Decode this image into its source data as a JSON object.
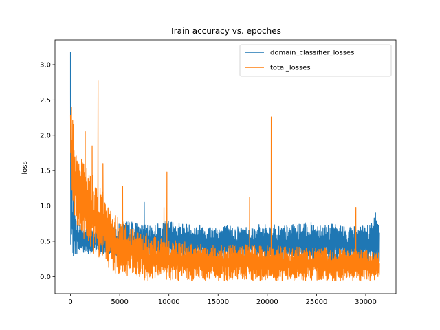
{
  "chart_data": {
    "type": "line",
    "title": "Train accuracy vs. epoches",
    "xlabel": "",
    "ylabel": "loss",
    "xlim": [
      -1575,
      33075
    ],
    "ylim": [
      -0.24,
      3.35
    ],
    "x_ticks": [
      0,
      5000,
      10000,
      15000,
      20000,
      25000,
      30000
    ],
    "x_tick_labels": [
      "0",
      "5000",
      "10000",
      "15000",
      "20000",
      "25000",
      "30000"
    ],
    "y_ticks": [
      0.0,
      0.5,
      1.0,
      1.5,
      2.0,
      2.5,
      3.0
    ],
    "y_tick_labels": [
      "0.0",
      "0.5",
      "1.0",
      "1.5",
      "2.0",
      "2.5",
      "3.0"
    ],
    "grid": false,
    "legend_position": "top-right",
    "series": [
      {
        "name": "domain_classifier_losses",
        "color": "#1f77b4",
        "envelope": {
          "x": [
            0,
            100,
            200,
            400,
            700,
            1000,
            1500,
            2000,
            2500,
            3000,
            3500,
            4000,
            5000,
            6000,
            7000,
            8000,
            10000,
            12000,
            15000,
            18000,
            20000,
            22000,
            25000,
            28000,
            30000,
            31400
          ],
          "upper": [
            3.18,
            2.1,
            1.2,
            0.95,
            0.85,
            0.75,
            0.7,
            0.68,
            0.66,
            0.65,
            0.66,
            0.7,
            0.75,
            0.8,
            0.75,
            0.72,
            0.8,
            0.75,
            0.73,
            0.72,
            0.75,
            0.73,
            0.78,
            0.72,
            0.72,
            0.9
          ],
          "lower": [
            0.05,
            0.15,
            0.25,
            0.3,
            0.32,
            0.33,
            0.33,
            0.32,
            0.32,
            0.32,
            0.3,
            0.3,
            0.3,
            0.28,
            0.28,
            0.28,
            0.25,
            0.25,
            0.22,
            0.22,
            0.2,
            0.2,
            0.18,
            0.18,
            0.18,
            0.05
          ]
        },
        "spikes": [
          {
            "x": 0,
            "y": 3.18
          },
          {
            "x": 150,
            "y": 1.78
          },
          {
            "x": 7500,
            "y": 1.05
          },
          {
            "x": 31000,
            "y": 0.9
          }
        ]
      },
      {
        "name": "total_losses",
        "color": "#ff7f0e",
        "envelope": {
          "x": [
            0,
            200,
            500,
            1000,
            1500,
            2000,
            2500,
            3000,
            3500,
            4000,
            4500,
            5000,
            6000,
            7000,
            8000,
            9000,
            10000,
            12000,
            15000,
            18000,
            20000,
            22000,
            25000,
            28000,
            30000,
            31400
          ],
          "upper": [
            2.4,
            2.25,
            1.9,
            1.7,
            1.6,
            1.5,
            1.4,
            1.3,
            1.1,
            1.0,
            0.9,
            0.85,
            0.75,
            0.65,
            0.6,
            0.55,
            0.55,
            0.5,
            0.45,
            0.45,
            0.45,
            0.42,
            0.42,
            0.4,
            0.38,
            0.35
          ],
          "lower": [
            1.7,
            1.0,
            0.75,
            0.6,
            0.5,
            0.4,
            0.3,
            0.25,
            0.2,
            0.1,
            0.05,
            0.0,
            -0.03,
            -0.05,
            -0.06,
            -0.06,
            -0.06,
            -0.06,
            -0.06,
            -0.06,
            -0.06,
            -0.06,
            -0.06,
            -0.06,
            -0.06,
            -0.06
          ]
        },
        "spikes": [
          {
            "x": 100,
            "y": 2.4
          },
          {
            "x": 1500,
            "y": 2.05
          },
          {
            "x": 2200,
            "y": 1.85
          },
          {
            "x": 2800,
            "y": 2.77
          },
          {
            "x": 3300,
            "y": 1.6
          },
          {
            "x": 5300,
            "y": 1.28
          },
          {
            "x": 9500,
            "y": 0.98
          },
          {
            "x": 9800,
            "y": 1.48
          },
          {
            "x": 18200,
            "y": 1.12
          },
          {
            "x": 20400,
            "y": 2.26
          },
          {
            "x": 29000,
            "y": 0.98
          }
        ]
      }
    ]
  }
}
